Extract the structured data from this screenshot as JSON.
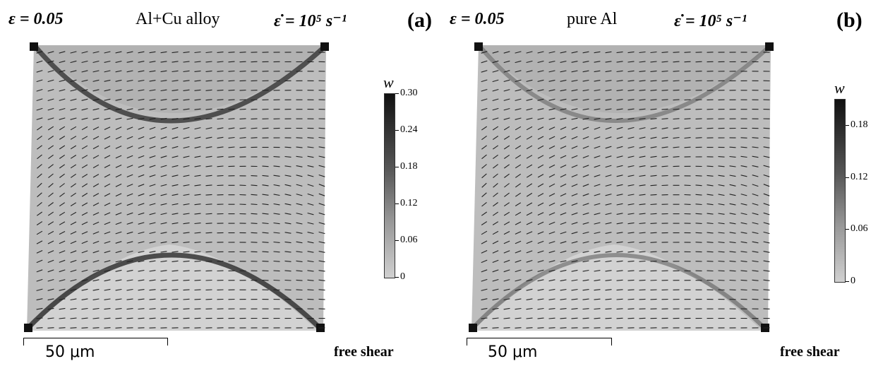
{
  "panel_a": {
    "strain_label": "ε = 0.05",
    "title": "Al+Cu alloy",
    "rate_label": "ε̇ = 10⁵ s⁻¹",
    "letter": "(a)",
    "colorbar": {
      "variable": "w",
      "ticks": [
        "0.30",
        "0.24",
        "0.18",
        "0.12",
        "0.06",
        "0"
      ],
      "max": 0.3
    },
    "scale_bar": "50 μm",
    "boundary": "free shear"
  },
  "panel_b": {
    "strain_label": "ε = 0.05",
    "title": "pure Al",
    "rate_label": "ε̇ = 10⁵ s⁻¹",
    "letter": "(b)",
    "colorbar": {
      "variable": "w",
      "ticks": [
        "0.18",
        "0.12",
        "0.06",
        "0"
      ],
      "max": 0.21
    },
    "scale_bar": "50 μm",
    "boundary": "free shear"
  },
  "colors": {
    "low": "#cfcfcf",
    "high": "#111111"
  }
}
